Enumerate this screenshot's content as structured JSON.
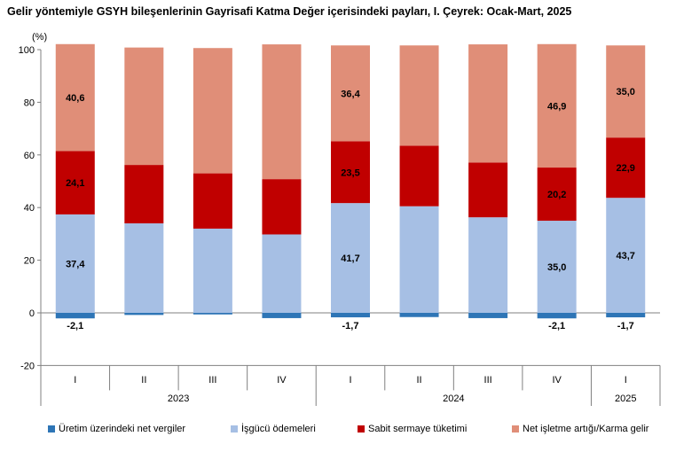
{
  "chart_data": {
    "type": "bar",
    "stacked": true,
    "title": "Gelir yöntemiyle GSYH bileşenlerinin Gayrisafi Katma Değer içerisindeki payları, I. Çeyrek: Ocak-Mart, 2025",
    "ylabel": "(%)",
    "ylim": [
      -20,
      100
    ],
    "yticks": [
      "100",
      "80",
      "60",
      "40",
      "20",
      "0",
      "-20"
    ],
    "categories": [
      "I",
      "II",
      "III",
      "IV",
      "I",
      "II",
      "III",
      "IV",
      "I"
    ],
    "year_groups": [
      {
        "label": "2023",
        "count": 4
      },
      {
        "label": "2024",
        "count": 4
      },
      {
        "label": "2025",
        "count": 1
      }
    ],
    "series": [
      {
        "name": "Üretim üzerindeki net vergiler",
        "color": "#2e75b6",
        "values": [
          -2.1,
          -0.8,
          -0.6,
          -2.0,
          -1.7,
          -1.6,
          -2.0,
          -2.1,
          -1.7
        ],
        "labels": [
          "-2,1",
          "",
          "",
          "",
          "-1,7",
          "",
          "",
          "-2,1",
          "-1,7"
        ]
      },
      {
        "name": "İşgücü ödemeleri",
        "color": "#a6bfe4",
        "values": [
          37.4,
          34.0,
          32.0,
          29.8,
          41.7,
          40.5,
          36.3,
          35.0,
          43.7
        ],
        "labels": [
          "37,4",
          "",
          "",
          "",
          "41,7",
          "",
          "",
          "35,0",
          "43,7"
        ]
      },
      {
        "name": "Sabit sermaye tüketimi",
        "color": "#c00000",
        "values": [
          24.1,
          22.2,
          21.0,
          21.0,
          23.5,
          23.0,
          20.8,
          20.2,
          22.9
        ],
        "labels": [
          "24,1",
          "",
          "",
          "",
          "23,5",
          "",
          "",
          "20,2",
          "22,9"
        ]
      },
      {
        "name": "Net işletme artığı/Karma gelir",
        "color": "#e08e78",
        "values": [
          40.6,
          44.6,
          47.6,
          51.2,
          36.4,
          38.1,
          44.9,
          46.9,
          35.0
        ],
        "labels": [
          "40,6",
          "",
          "",
          "",
          "36,4",
          "",
          "",
          "46,9",
          "35,0"
        ]
      }
    ],
    "legend_position": "bottom",
    "grid": false
  }
}
